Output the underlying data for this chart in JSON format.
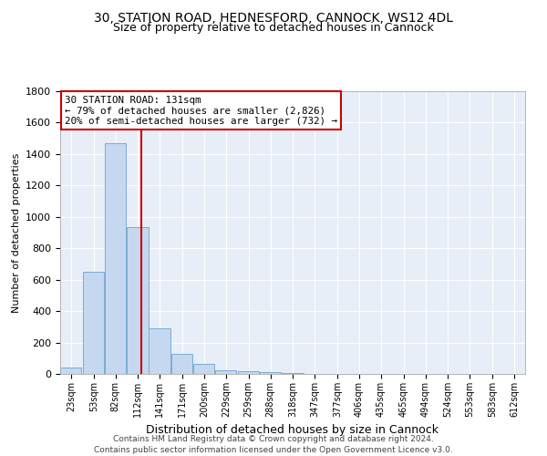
{
  "title_line1": "30, STATION ROAD, HEDNESFORD, CANNOCK, WS12 4DL",
  "title_line2": "Size of property relative to detached houses in Cannock",
  "xlabel": "Distribution of detached houses by size in Cannock",
  "ylabel": "Number of detached properties",
  "bar_color": "#c5d8f0",
  "bar_edge_color": "#7aadd4",
  "background_color": "#e8eef7",
  "plot_bg_color": "#e8eef7",
  "grid_color": "#ffffff",
  "annotation_text": "30 STATION ROAD: 131sqm\n← 79% of detached houses are smaller (2,826)\n20% of semi-detached houses are larger (732) →",
  "redline_x": 131,
  "categories": [
    "23sqm",
    "53sqm",
    "82sqm",
    "112sqm",
    "141sqm",
    "171sqm",
    "200sqm",
    "229sqm",
    "259sqm",
    "288sqm",
    "318sqm",
    "347sqm",
    "377sqm",
    "406sqm",
    "435sqm",
    "465sqm",
    "494sqm",
    "524sqm",
    "553sqm",
    "583sqm",
    "612sqm"
  ],
  "bin_edges": [
    23,
    53,
    82,
    112,
    141,
    171,
    200,
    229,
    259,
    288,
    318,
    347,
    377,
    406,
    435,
    465,
    494,
    524,
    553,
    583,
    612
  ],
  "bin_width": 29,
  "values": [
    40,
    650,
    1470,
    935,
    290,
    128,
    65,
    25,
    15,
    10,
    5,
    2,
    0,
    0,
    0,
    0,
    0,
    0,
    0,
    0,
    0
  ],
  "ylim": [
    0,
    1800
  ],
  "yticks": [
    0,
    200,
    400,
    600,
    800,
    1000,
    1200,
    1400,
    1600,
    1800
  ],
  "footnote": "Contains HM Land Registry data © Crown copyright and database right 2024.\nContains public sector information licensed under the Open Government Licence v3.0.",
  "title_fontsize": 10,
  "subtitle_fontsize": 9,
  "ylabel_fontsize": 8,
  "xlabel_fontsize": 9,
  "annotation_box_color": "#ffffff",
  "annotation_box_edge": "#cc0000",
  "redline_color": "#cc0000",
  "footnote_fontsize": 6.5
}
